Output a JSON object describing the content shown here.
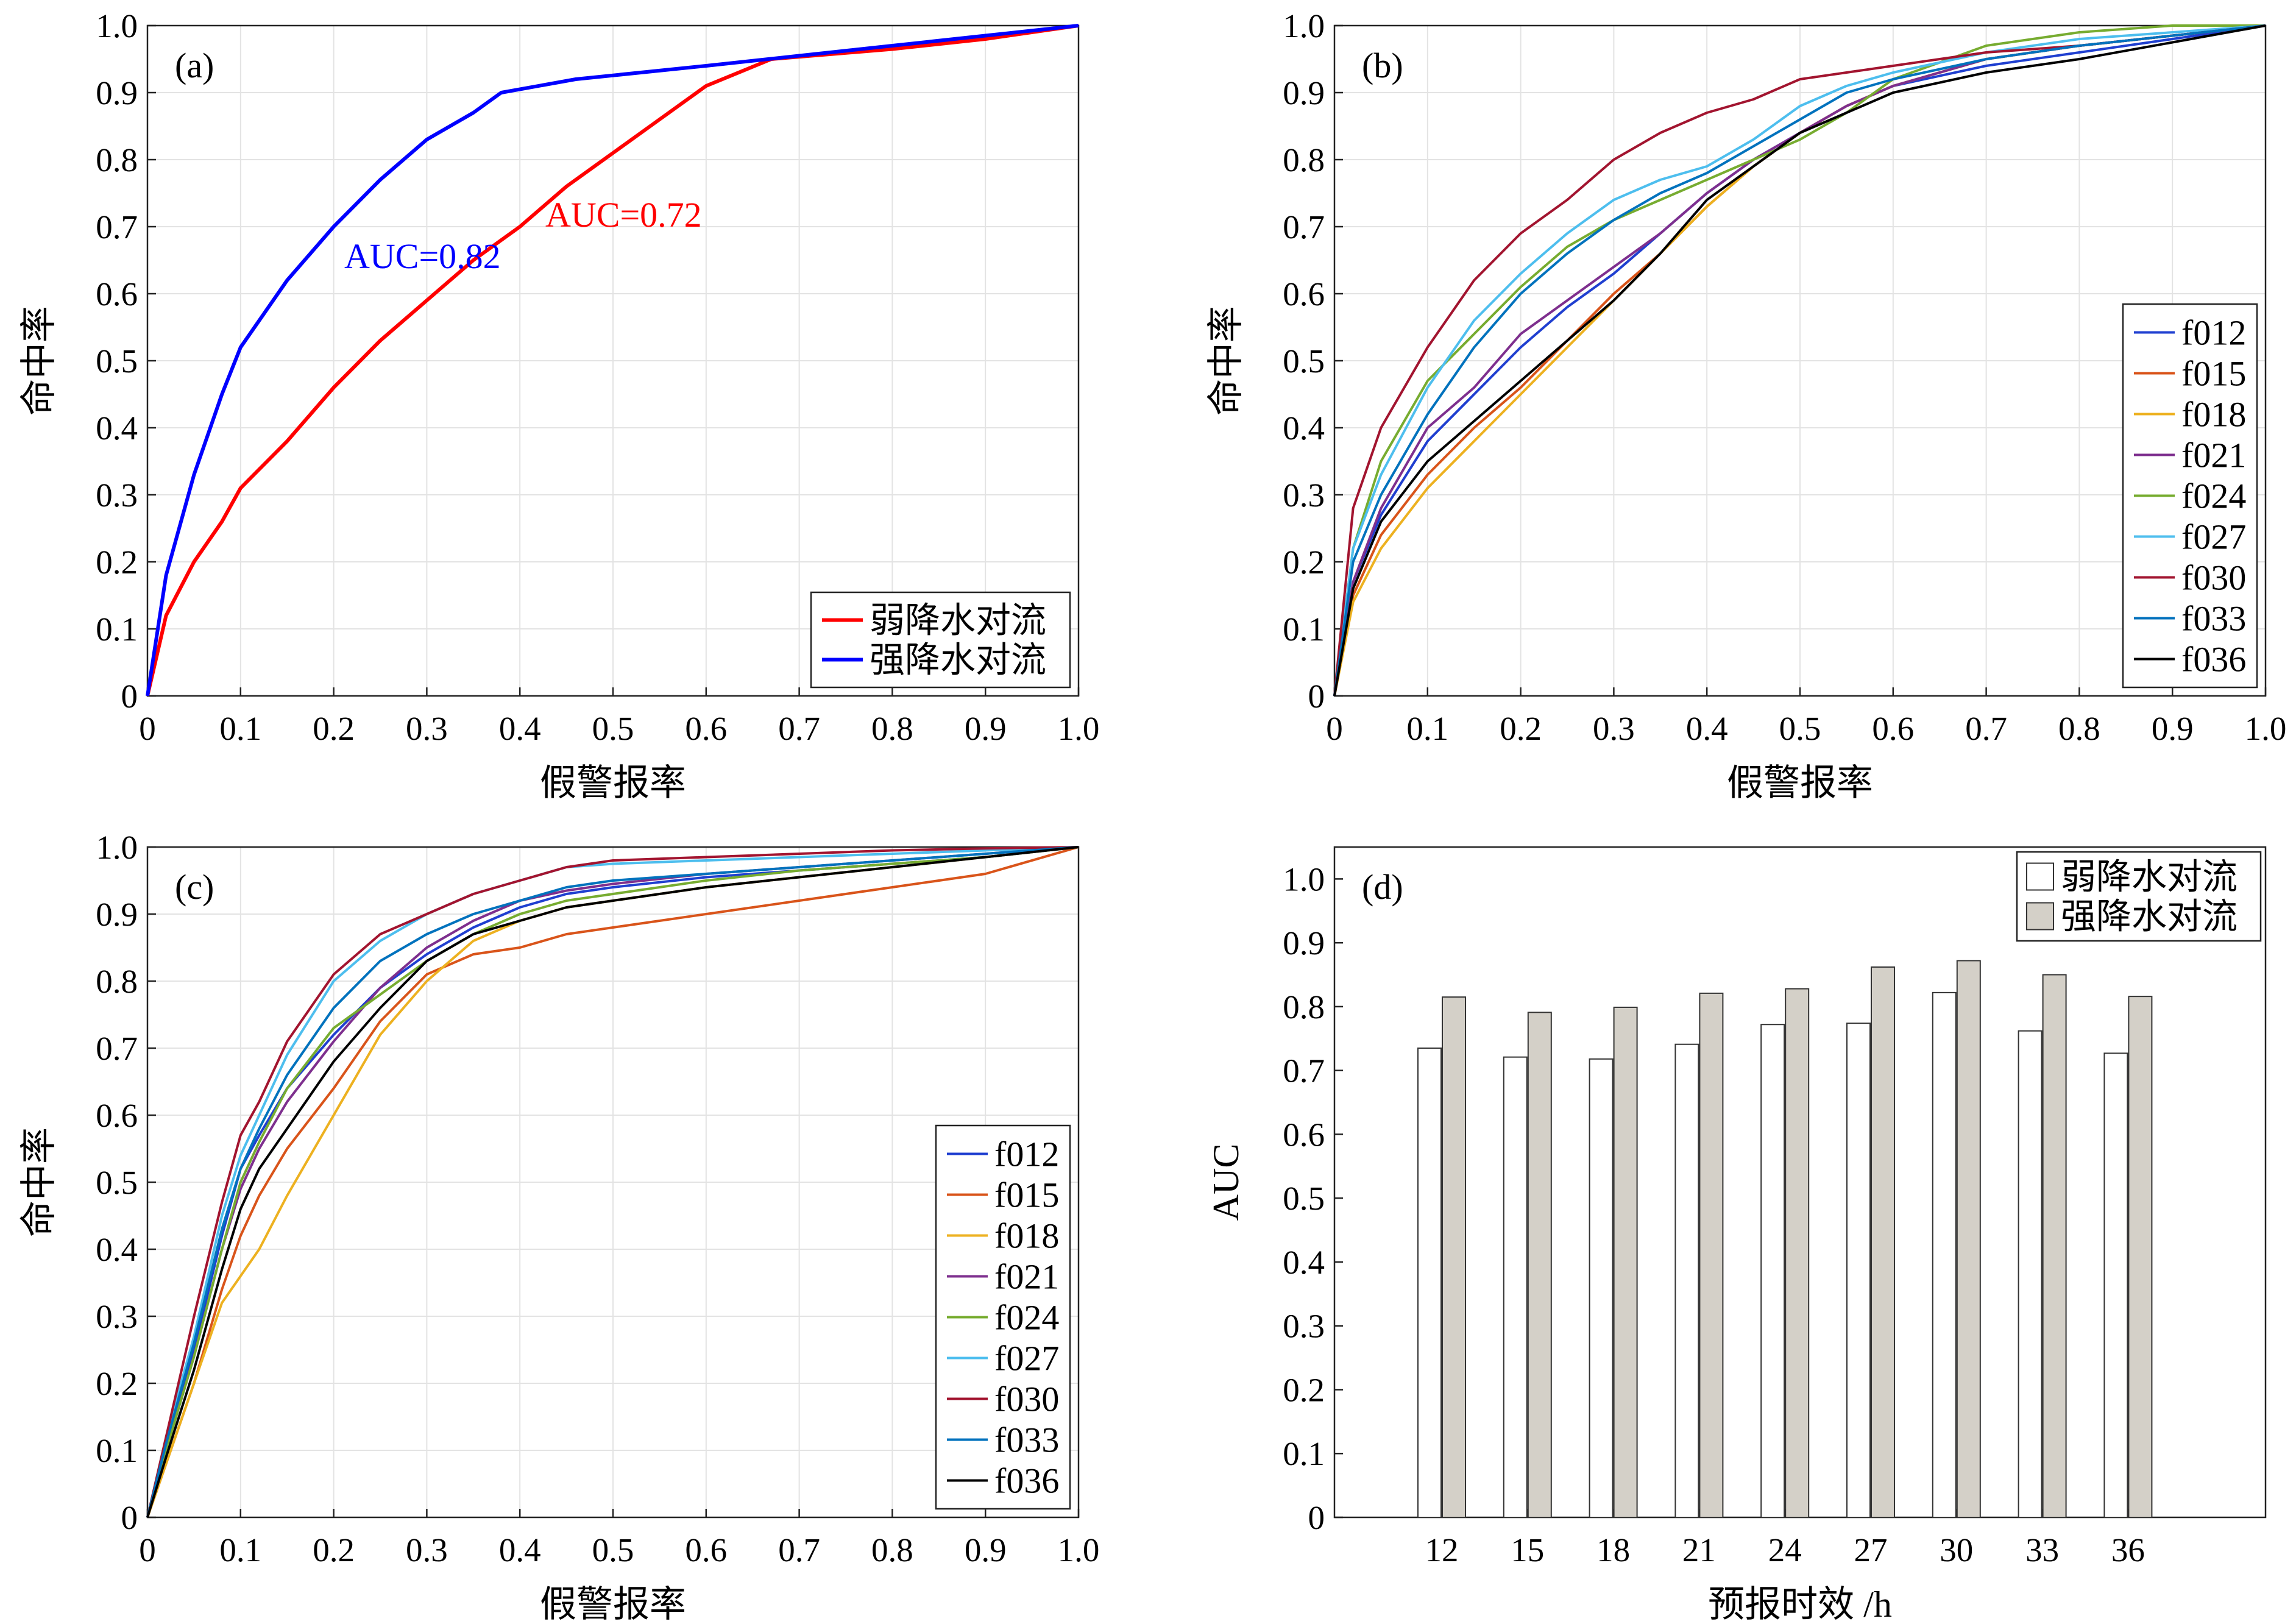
{
  "chart_data": [
    {
      "panel": "(a)",
      "type": "line",
      "xlabel": "假警报率",
      "ylabel": "命中率",
      "xlim": [
        0,
        1
      ],
      "ylim": [
        0,
        1
      ],
      "xticks": [
        "0",
        "0.1",
        "0.2",
        "0.3",
        "0.4",
        "0.5",
        "0.6",
        "0.7",
        "0.8",
        "0.9",
        "1.0"
      ],
      "yticks": [
        "0",
        "0.1",
        "0.2",
        "0.3",
        "0.4",
        "0.5",
        "0.6",
        "0.7",
        "0.8",
        "0.9",
        "1.0"
      ],
      "grid": true,
      "legend_position": "bottom-right",
      "annotations": [
        "AUC=0.72",
        "AUC=0.82"
      ],
      "series": [
        {
          "name": "弱降水对流",
          "color": "#ff0000",
          "x": [
            0,
            0.02,
            0.05,
            0.08,
            0.1,
            0.15,
            0.2,
            0.25,
            0.3,
            0.35,
            0.4,
            0.45,
            0.5,
            0.55,
            0.6,
            0.67,
            0.8,
            0.9,
            1.0
          ],
          "y": [
            0,
            0.12,
            0.2,
            0.26,
            0.31,
            0.38,
            0.46,
            0.53,
            0.59,
            0.65,
            0.7,
            0.76,
            0.81,
            0.86,
            0.91,
            0.95,
            0.965,
            0.98,
            1.0
          ]
        },
        {
          "name": "强降水对流",
          "color": "#0000ff",
          "x": [
            0,
            0.02,
            0.05,
            0.08,
            0.1,
            0.15,
            0.2,
            0.25,
            0.3,
            0.35,
            0.38,
            0.46,
            0.6,
            0.7,
            0.8,
            0.9,
            1.0
          ],
          "y": [
            0,
            0.18,
            0.33,
            0.45,
            0.52,
            0.62,
            0.7,
            0.77,
            0.83,
            0.87,
            0.9,
            0.92,
            0.94,
            0.955,
            0.97,
            0.985,
            1.0
          ]
        }
      ]
    },
    {
      "panel": "(b)",
      "type": "line",
      "xlabel": "假警报率",
      "ylabel": "命中率",
      "xlim": [
        0,
        1
      ],
      "ylim": [
        0,
        1
      ],
      "xticks": [
        "0",
        "0.1",
        "0.2",
        "0.3",
        "0.4",
        "0.5",
        "0.6",
        "0.7",
        "0.8",
        "0.9",
        "1.0"
      ],
      "yticks": [
        "0",
        "0.1",
        "0.2",
        "0.3",
        "0.4",
        "0.5",
        "0.6",
        "0.7",
        "0.8",
        "0.9",
        "1.0"
      ],
      "grid": true,
      "legend_position": "right",
      "x": [
        0,
        0.02,
        0.05,
        0.1,
        0.15,
        0.2,
        0.25,
        0.3,
        0.35,
        0.4,
        0.45,
        0.5,
        0.55,
        0.6,
        0.7,
        0.8,
        0.9,
        1.0
      ],
      "series": [
        {
          "name": "f012",
          "color": "#1f3fd0",
          "y": [
            0,
            0.17,
            0.27,
            0.38,
            0.45,
            0.52,
            0.58,
            0.63,
            0.69,
            0.75,
            0.8,
            0.84,
            0.88,
            0.91,
            0.94,
            0.96,
            0.98,
            1.0
          ]
        },
        {
          "name": "f015",
          "color": "#d9541a",
          "y": [
            0,
            0.15,
            0.24,
            0.33,
            0.4,
            0.46,
            0.53,
            0.6,
            0.66,
            0.73,
            0.79,
            0.84,
            0.88,
            0.91,
            0.95,
            0.97,
            0.985,
            1.0
          ]
        },
        {
          "name": "f018",
          "color": "#edb120",
          "y": [
            0,
            0.14,
            0.22,
            0.31,
            0.38,
            0.45,
            0.52,
            0.59,
            0.66,
            0.73,
            0.79,
            0.84,
            0.88,
            0.91,
            0.95,
            0.97,
            0.985,
            1.0
          ]
        },
        {
          "name": "f021",
          "color": "#7e2f8e",
          "y": [
            0,
            0.17,
            0.28,
            0.4,
            0.46,
            0.54,
            0.59,
            0.64,
            0.69,
            0.75,
            0.8,
            0.84,
            0.88,
            0.91,
            0.95,
            0.97,
            0.985,
            1.0
          ]
        },
        {
          "name": "f024",
          "color": "#77ac30",
          "y": [
            0,
            0.22,
            0.35,
            0.47,
            0.54,
            0.61,
            0.67,
            0.71,
            0.74,
            0.77,
            0.8,
            0.83,
            0.87,
            0.92,
            0.97,
            0.99,
            1.0,
            1.0
          ]
        },
        {
          "name": "f027",
          "color": "#4dbeee",
          "y": [
            0,
            0.22,
            0.33,
            0.46,
            0.56,
            0.63,
            0.69,
            0.74,
            0.77,
            0.79,
            0.83,
            0.88,
            0.91,
            0.93,
            0.96,
            0.98,
            0.99,
            1.0
          ]
        },
        {
          "name": "f030",
          "color": "#a2142f",
          "y": [
            0,
            0.28,
            0.4,
            0.52,
            0.62,
            0.69,
            0.74,
            0.8,
            0.84,
            0.87,
            0.89,
            0.92,
            0.93,
            0.94,
            0.96,
            0.97,
            0.985,
            1.0
          ]
        },
        {
          "name": "f033",
          "color": "#0072bd",
          "y": [
            0,
            0.2,
            0.3,
            0.42,
            0.52,
            0.6,
            0.66,
            0.71,
            0.75,
            0.78,
            0.82,
            0.86,
            0.9,
            0.92,
            0.95,
            0.97,
            0.985,
            1.0
          ]
        },
        {
          "name": "f036",
          "color": "#000000",
          "y": [
            0,
            0.16,
            0.26,
            0.35,
            0.41,
            0.47,
            0.53,
            0.59,
            0.66,
            0.74,
            0.79,
            0.84,
            0.87,
            0.9,
            0.93,
            0.95,
            0.975,
            1.0
          ]
        }
      ]
    },
    {
      "panel": "(c)",
      "type": "line",
      "xlabel": "假警报率",
      "ylabel": "命中率",
      "xlim": [
        0,
        1
      ],
      "ylim": [
        0,
        1
      ],
      "xticks": [
        "0",
        "0.1",
        "0.2",
        "0.3",
        "0.4",
        "0.5",
        "0.6",
        "0.7",
        "0.8",
        "0.9",
        "1.0"
      ],
      "yticks": [
        "0",
        "0.1",
        "0.2",
        "0.3",
        "0.4",
        "0.5",
        "0.6",
        "0.7",
        "0.8",
        "0.9",
        "1.0"
      ],
      "grid": true,
      "legend_position": "right",
      "x": [
        0,
        0.02,
        0.05,
        0.08,
        0.1,
        0.12,
        0.15,
        0.2,
        0.25,
        0.3,
        0.35,
        0.4,
        0.45,
        0.5,
        0.6,
        0.7,
        0.8,
        0.9,
        1.0
      ],
      "series": [
        {
          "name": "f012",
          "color": "#1f3fd0",
          "y": [
            0,
            0.1,
            0.25,
            0.42,
            0.52,
            0.57,
            0.64,
            0.72,
            0.79,
            0.84,
            0.88,
            0.91,
            0.93,
            0.94,
            0.955,
            0.965,
            0.975,
            0.985,
            1.0
          ]
        },
        {
          "name": "f015",
          "color": "#d9541a",
          "y": [
            0,
            0.08,
            0.2,
            0.34,
            0.42,
            0.48,
            0.55,
            0.64,
            0.74,
            0.81,
            0.84,
            0.85,
            0.87,
            0.88,
            0.9,
            0.92,
            0.94,
            0.96,
            1.0
          ]
        },
        {
          "name": "f018",
          "color": "#edb120",
          "y": [
            0,
            0.08,
            0.2,
            0.32,
            0.36,
            0.4,
            0.48,
            0.6,
            0.72,
            0.8,
            0.86,
            0.89,
            0.91,
            0.92,
            0.94,
            0.955,
            0.97,
            0.985,
            1.0
          ]
        },
        {
          "name": "f021",
          "color": "#7e2f8e",
          "y": [
            0,
            0.1,
            0.24,
            0.4,
            0.49,
            0.55,
            0.62,
            0.71,
            0.79,
            0.85,
            0.89,
            0.92,
            0.935,
            0.945,
            0.96,
            0.97,
            0.98,
            0.99,
            1.0
          ]
        },
        {
          "name": "f024",
          "color": "#77ac30",
          "y": [
            0,
            0.1,
            0.24,
            0.4,
            0.5,
            0.56,
            0.64,
            0.73,
            0.78,
            0.83,
            0.87,
            0.9,
            0.92,
            0.93,
            0.95,
            0.965,
            0.975,
            0.985,
            1.0
          ]
        },
        {
          "name": "f027",
          "color": "#4dbeee",
          "y": [
            0,
            0.12,
            0.27,
            0.45,
            0.54,
            0.6,
            0.69,
            0.8,
            0.86,
            0.9,
            0.93,
            0.95,
            0.97,
            0.975,
            0.98,
            0.985,
            0.99,
            0.995,
            1.0
          ]
        },
        {
          "name": "f030",
          "color": "#a2142f",
          "y": [
            0,
            0.12,
            0.3,
            0.47,
            0.57,
            0.62,
            0.71,
            0.81,
            0.87,
            0.9,
            0.93,
            0.95,
            0.97,
            0.98,
            0.985,
            0.99,
            0.995,
            0.998,
            1.0
          ]
        },
        {
          "name": "f033",
          "color": "#0072bd",
          "y": [
            0,
            0.11,
            0.26,
            0.43,
            0.52,
            0.58,
            0.66,
            0.76,
            0.83,
            0.87,
            0.9,
            0.92,
            0.94,
            0.95,
            0.96,
            0.97,
            0.98,
            0.99,
            1.0
          ]
        },
        {
          "name": "f036",
          "color": "#000000",
          "y": [
            0,
            0.09,
            0.22,
            0.37,
            0.46,
            0.52,
            0.58,
            0.68,
            0.76,
            0.83,
            0.87,
            0.89,
            0.91,
            0.92,
            0.94,
            0.955,
            0.97,
            0.985,
            1.0
          ]
        }
      ]
    },
    {
      "panel": "(d)",
      "type": "bar",
      "xlabel": "预报时效 /h",
      "ylabel": "AUC",
      "categories": [
        "12",
        "15",
        "18",
        "21",
        "24",
        "27",
        "30",
        "33",
        "36"
      ],
      "ylim": [
        0,
        1.05
      ],
      "yticks": [
        "0",
        "0.1",
        "0.2",
        "0.3",
        "0.4",
        "0.5",
        "0.6",
        "0.7",
        "0.8",
        "0.9",
        "1.0"
      ],
      "grid": false,
      "legend_position": "top-right",
      "series": [
        {
          "name": "弱降水对流",
          "color": "#ffffff",
          "values": [
            0.735,
            0.721,
            0.718,
            0.741,
            0.772,
            0.774,
            0.822,
            0.762,
            0.727
          ]
        },
        {
          "name": "强降水对流",
          "color": "#d4d0c8",
          "values": [
            0.815,
            0.791,
            0.799,
            0.821,
            0.828,
            0.862,
            0.872,
            0.85,
            0.816
          ]
        }
      ]
    }
  ]
}
